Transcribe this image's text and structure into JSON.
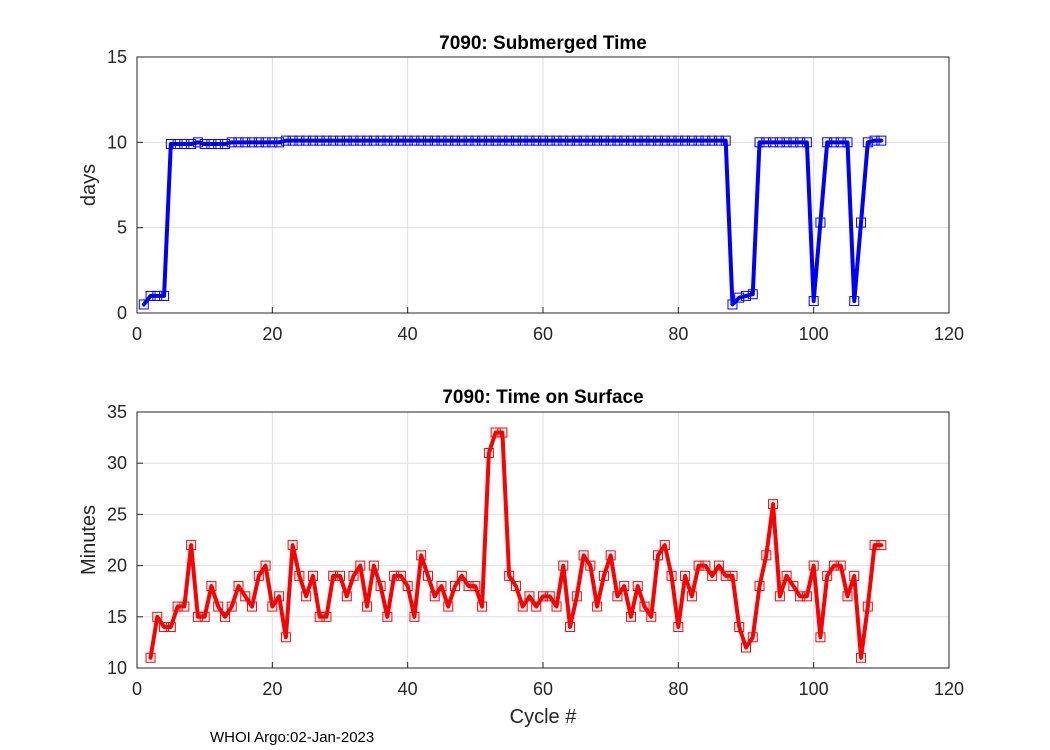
{
  "footer": "WHOI Argo:02-Jan-2023",
  "chart_data": [
    {
      "type": "line",
      "title": "7090: Submerged Time",
      "xlabel": "",
      "ylabel": "days",
      "xlim": [
        0,
        120
      ],
      "ylim": [
        0,
        15
      ],
      "xticks": [
        "0",
        "20",
        "40",
        "60",
        "80",
        "100",
        "120"
      ],
      "yticks": [
        "0",
        "5",
        "10",
        "15"
      ],
      "grid": true,
      "color": "#0000ff",
      "series": [
        {
          "name": "Submerged Time",
          "x": [
            1,
            2,
            3,
            4,
            5,
            6,
            7,
            8,
            9,
            10,
            11,
            12,
            13,
            14,
            15,
            16,
            17,
            18,
            19,
            20,
            21,
            22,
            23,
            24,
            25,
            26,
            27,
            28,
            29,
            30,
            31,
            32,
            33,
            34,
            35,
            36,
            37,
            38,
            39,
            40,
            41,
            42,
            43,
            44,
            45,
            46,
            47,
            48,
            49,
            50,
            51,
            52,
            53,
            54,
            55,
            56,
            57,
            58,
            59,
            60,
            61,
            62,
            63,
            64,
            65,
            66,
            67,
            68,
            69,
            70,
            71,
            72,
            73,
            74,
            75,
            76,
            77,
            78,
            79,
            80,
            81,
            82,
            83,
            84,
            85,
            86,
            87,
            88,
            89,
            90,
            91,
            92,
            93,
            94,
            95,
            96,
            97,
            98,
            99,
            100,
            101,
            102,
            103,
            104,
            105,
            106,
            107,
            108,
            109,
            110
          ],
          "values": [
            0.5,
            1.0,
            1.0,
            1.0,
            9.9,
            9.9,
            9.9,
            9.9,
            10.0,
            9.9,
            9.9,
            9.9,
            9.9,
            10.0,
            10.0,
            10.0,
            10.0,
            10.0,
            10.0,
            10.0,
            10.0,
            10.1,
            10.1,
            10.1,
            10.1,
            10.1,
            10.1,
            10.1,
            10.1,
            10.1,
            10.1,
            10.1,
            10.1,
            10.1,
            10.1,
            10.1,
            10.1,
            10.1,
            10.1,
            10.1,
            10.1,
            10.1,
            10.1,
            10.1,
            10.1,
            10.1,
            10.1,
            10.1,
            10.1,
            10.1,
            10.1,
            10.1,
            10.1,
            10.1,
            10.1,
            10.1,
            10.1,
            10.1,
            10.1,
            10.1,
            10.1,
            10.1,
            10.1,
            10.1,
            10.1,
            10.1,
            10.1,
            10.1,
            10.1,
            10.1,
            10.1,
            10.1,
            10.1,
            10.1,
            10.1,
            10.1,
            10.1,
            10.1,
            10.1,
            10.1,
            10.1,
            10.1,
            10.1,
            10.1,
            10.1,
            10.1,
            10.1,
            0.5,
            0.9,
            1.0,
            1.1,
            10.0,
            10.0,
            10.0,
            10.0,
            10.0,
            10.0,
            10.0,
            10.0,
            0.7,
            5.3,
            10.0,
            10.0,
            10.0,
            10.0,
            0.7,
            5.3,
            10.0,
            10.1,
            10.1
          ]
        }
      ]
    },
    {
      "type": "line",
      "title": "7090: Time on Surface",
      "xlabel": "Cycle #",
      "ylabel": "Minutes",
      "xlim": [
        0,
        120
      ],
      "ylim": [
        10,
        35
      ],
      "xticks": [
        "0",
        "20",
        "40",
        "60",
        "80",
        "100",
        "120"
      ],
      "yticks": [
        "10",
        "15",
        "20",
        "25",
        "30",
        "35"
      ],
      "grid": true,
      "color": "#ff0000",
      "series": [
        {
          "name": "Time on Surface",
          "x": [
            2,
            3,
            4,
            5,
            6,
            7,
            8,
            9,
            10,
            11,
            12,
            13,
            14,
            15,
            16,
            17,
            18,
            19,
            20,
            21,
            22,
            23,
            24,
            25,
            26,
            27,
            28,
            29,
            30,
            31,
            32,
            33,
            34,
            35,
            36,
            37,
            38,
            39,
            40,
            41,
            42,
            43,
            44,
            45,
            46,
            47,
            48,
            49,
            50,
            51,
            52,
            53,
            54,
            55,
            56,
            57,
            58,
            59,
            60,
            61,
            62,
            63,
            64,
            65,
            66,
            67,
            68,
            69,
            70,
            71,
            72,
            73,
            74,
            75,
            76,
            77,
            78,
            79,
            80,
            81,
            82,
            83,
            84,
            85,
            86,
            87,
            88,
            89,
            90,
            91,
            92,
            93,
            94,
            95,
            96,
            97,
            98,
            99,
            100,
            101,
            102,
            103,
            104,
            105,
            106,
            107,
            108,
            109,
            110
          ],
          "values": [
            11,
            15,
            14,
            14,
            16,
            16,
            22,
            15,
            15,
            18,
            16,
            15,
            16,
            18,
            17,
            16,
            19,
            20,
            16,
            17,
            13,
            22,
            19,
            17,
            19,
            15,
            15,
            19,
            19,
            17,
            19,
            20,
            16,
            20,
            18,
            15,
            19,
            19,
            18,
            15,
            21,
            19,
            17,
            18,
            16,
            18,
            19,
            18,
            18,
            16,
            31,
            33,
            33,
            19,
            18,
            16,
            17,
            16,
            17,
            17,
            16,
            20,
            14,
            17,
            21,
            20,
            16,
            19,
            21,
            17,
            18,
            15,
            18,
            16,
            15,
            21,
            22,
            19,
            14,
            19,
            17,
            20,
            20,
            19,
            20,
            19,
            19,
            14,
            12,
            13,
            18,
            21,
            26,
            17,
            19,
            18,
            17,
            17,
            20,
            13,
            19,
            20,
            20,
            17,
            19,
            11,
            16,
            22,
            22
          ]
        }
      ]
    }
  ]
}
